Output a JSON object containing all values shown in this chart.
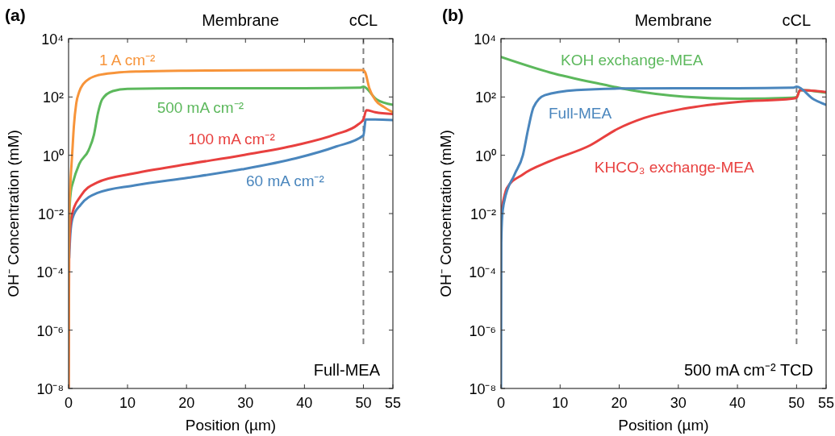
{
  "chart_data": [
    {
      "type": "line",
      "title": "(a)",
      "xlabel": "Position (µm)",
      "ylabel": "OH⁻ Concentration (mM)",
      "log": "y",
      "legend": false,
      "grid": false,
      "xlim": [
        0,
        55
      ],
      "xticks": [
        0,
        10,
        20,
        30,
        40,
        50,
        55
      ],
      "ylim": [
        1e-08,
        10000
      ],
      "yticks": [
        {
          "value": 1e-08,
          "label": "10⁻⁸"
        },
        {
          "value": 1e-06,
          "label": "10⁻⁶"
        },
        {
          "value": 0.0001,
          "label": "10⁻⁴"
        },
        {
          "value": 0.01,
          "label": "10⁻²"
        },
        {
          "value": 1,
          "label": "10⁰"
        },
        {
          "value": 100,
          "label": "10²"
        },
        {
          "value": 10000,
          "label": "10⁴"
        }
      ],
      "ref_lines": [
        {
          "axis": "x",
          "value": 50,
          "label": "cCL",
          "color": "#808080",
          "line_style": "dashed"
        }
      ],
      "annotations": [
        "Membrane",
        "Full-MEA"
      ],
      "series": [
        {
          "name": "1 A cm⁻²",
          "color": "#f7943a",
          "x": [
            0,
            0.05,
            0.1,
            0.3,
            0.6,
            0.9,
            1.3,
            1.8,
            2.5,
            3.5,
            5,
            8,
            12,
            20,
            30,
            40,
            50,
            50.3,
            51,
            52,
            53.5,
            55
          ],
          "values": [
            1e-08,
            0.0001,
            0.01,
            0.1,
            1,
            10,
            60,
            150,
            280,
            420,
            560,
            680,
            750,
            800,
            820,
            830,
            830,
            700,
            200,
            80,
            45,
            30
          ]
        },
        {
          "name": "500 mA cm⁻²",
          "color": "#5cb85c",
          "x": [
            0.05,
            0.2,
            0.4,
            0.7,
            1.8,
            3.4,
            4.3,
            5,
            5.7,
            7.5,
            10,
            20,
            30,
            40,
            49.5,
            50,
            52.2,
            55
          ],
          "values": [
            0.001,
            0.02,
            0.06,
            0.11,
            0.5,
            1.5,
            5,
            29,
            83,
            160,
            190,
            200,
            200,
            200,
            210,
            225,
            83,
            54
          ]
        },
        {
          "name": "100 mA cm⁻²",
          "color": "#e8403f",
          "x": [
            0,
            0.1,
            0.3,
            0.68,
            2.05,
            4.8,
            11.2,
            20.3,
            29.4,
            38.5,
            45.4,
            49,
            50,
            50.5,
            52,
            55
          ],
          "values": [
            1e-08,
            0.0005,
            0.004,
            0.011,
            0.04,
            0.115,
            0.24,
            0.5,
            1,
            2.2,
            5.3,
            11,
            17,
            35,
            30,
            26
          ]
        },
        {
          "name": "60 mA cm⁻²",
          "color": "#4a86bd",
          "x": [
            0.1,
            0.3,
            0.68,
            2.05,
            4.8,
            11.2,
            20.3,
            29.4,
            38.5,
            45.4,
            50,
            50.4,
            52,
            55
          ],
          "values": [
            0.0003,
            0.002,
            0.007,
            0.02,
            0.05,
            0.093,
            0.17,
            0.33,
            0.78,
            2,
            4.8,
            17,
            17,
            16
          ]
        }
      ]
    },
    {
      "type": "line",
      "title": "(b)",
      "xlabel": "Position (µm)",
      "ylabel": "OH⁻ Concentration (mM)",
      "log": "y",
      "legend": false,
      "grid": false,
      "xlim": [
        0,
        55
      ],
      "xticks": [
        0,
        10,
        20,
        30,
        40,
        50,
        55
      ],
      "ylim": [
        1e-08,
        10000
      ],
      "yticks": [
        {
          "value": 1e-08,
          "label": "10⁻⁸"
        },
        {
          "value": 1e-06,
          "label": "10⁻⁶"
        },
        {
          "value": 0.0001,
          "label": "10⁻⁴"
        },
        {
          "value": 0.01,
          "label": "10⁻²"
        },
        {
          "value": 1,
          "label": "10⁰"
        },
        {
          "value": 100,
          "label": "10²"
        },
        {
          "value": 10000,
          "label": "10⁴"
        }
      ],
      "ref_lines": [
        {
          "axis": "x",
          "value": 50,
          "label": "cCL",
          "color": "#808080",
          "line_style": "dashed"
        }
      ],
      "annotations": [
        "Membrane",
        "500 mA cm⁻² TCD"
      ],
      "series": [
        {
          "name": "Full-MEA",
          "color": "#4a86bd",
          "x": [
            0,
            0.05,
            0.2,
            0.55,
            2.3,
            3.7,
            4.6,
            5.5,
            7.4,
            12.8,
            20,
            30,
            40,
            49.5,
            50,
            52.9,
            55
          ],
          "values": [
            1e-08,
            0.001,
            0.008,
            0.026,
            0.22,
            1,
            8,
            44,
            115,
            173,
            195,
            200,
            200,
            210,
            225,
            83,
            54
          ]
        },
        {
          "name": "KHCO₃ exchange-MEA",
          "color": "#e8403f",
          "x": [
            0,
            1,
            3.7,
            8.3,
            15.1,
            19.7,
            24.2,
            31,
            40.1,
            49.2,
            50,
            50.6,
            55
          ],
          "values": [
            0.011,
            0.076,
            0.22,
            0.63,
            2.2,
            8,
            19,
            40,
            68,
            87,
            95,
            173,
            148
          ]
        },
        {
          "name": "KOH exchange-MEA",
          "color": "#5cb85c",
          "x": [
            0,
            8.3,
            17.4,
            21.9,
            31,
            40.1,
            49.2,
            50,
            50.6,
            55
          ],
          "values": [
            2350,
            690,
            265,
            173,
            102,
            87,
            95,
            100,
            173,
            140
          ]
        }
      ]
    }
  ]
}
